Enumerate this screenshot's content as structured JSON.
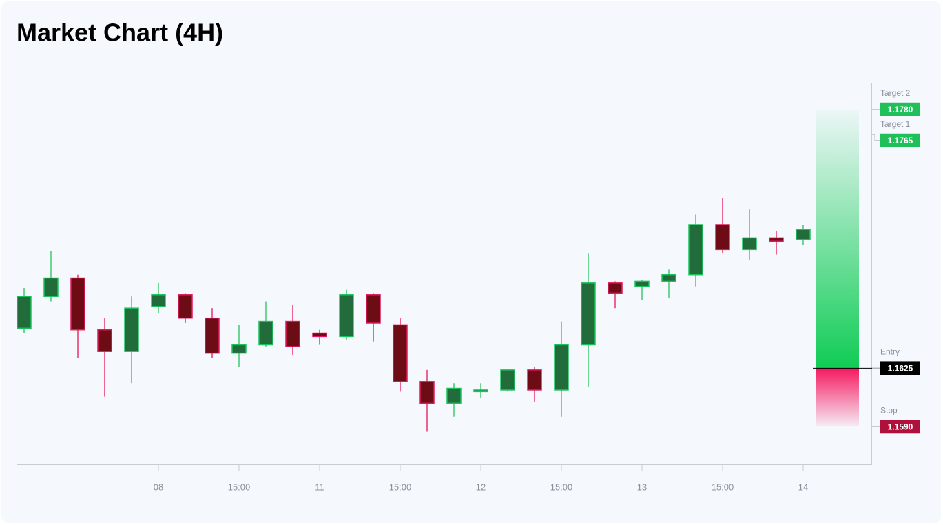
{
  "chart_data": {
    "type": "candlestick",
    "title": "Market Chart (4H)",
    "categories": [
      null,
      null,
      null,
      null,
      null,
      "08",
      null,
      null,
      "15:00",
      null,
      null,
      "11",
      null,
      null,
      "15:00",
      null,
      null,
      "12",
      null,
      null,
      "15:00",
      null,
      null,
      "13",
      null,
      null,
      "15:00",
      null,
      null,
      "14"
    ],
    "open": [
      1.1649,
      1.1668,
      1.1679,
      1.1648,
      1.1635,
      1.1662,
      1.1669,
      1.1655,
      1.1634,
      1.1639,
      1.1653,
      1.1646,
      1.1644,
      1.1669,
      1.1651,
      1.1617,
      1.1604,
      1.1611,
      1.1612,
      1.1624,
      1.1612,
      1.1639,
      1.1676,
      1.1674,
      1.1677,
      1.1681,
      1.1711,
      1.1696,
      1.1703,
      1.1702
    ],
    "high": [
      1.1673,
      1.1695,
      1.1681,
      1.1655,
      1.1668,
      1.1676,
      1.167,
      1.1661,
      1.1651,
      1.1665,
      1.1663,
      1.1648,
      1.1672,
      1.167,
      1.1655,
      1.1624,
      1.1616,
      1.1616,
      1.1624,
      1.1626,
      1.1653,
      1.1694,
      1.1677,
      1.1678,
      1.1684,
      1.1717,
      1.1727,
      1.172,
      1.1707,
      1.1711
    ],
    "low": [
      1.1646,
      1.1665,
      1.1631,
      1.1608,
      1.1616,
      1.1658,
      1.1652,
      1.1631,
      1.1626,
      1.1638,
      1.1633,
      1.1639,
      1.1642,
      1.1641,
      1.1611,
      1.1587,
      1.1596,
      1.1607,
      1.1611,
      1.1605,
      1.1596,
      1.1614,
      1.1661,
      1.1666,
      1.1667,
      1.1674,
      1.1694,
      1.169,
      1.1693,
      1.1699
    ],
    "close": [
      1.1668,
      1.1679,
      1.1648,
      1.1635,
      1.1661,
      1.1669,
      1.1655,
      1.1634,
      1.1639,
      1.1653,
      1.1638,
      1.1644,
      1.1669,
      1.1652,
      1.1617,
      1.1604,
      1.1613,
      1.1612,
      1.1624,
      1.1612,
      1.1639,
      1.1676,
      1.167,
      1.1677,
      1.1681,
      1.1711,
      1.1696,
      1.1703,
      1.1701,
      1.1708
    ],
    "up_color": "#226b3a",
    "down_color": "#6e0c16",
    "ylim": [
      1.1567,
      1.1796
    ],
    "levels": [
      {
        "name": "Target 2",
        "value": 1.178,
        "label": "1.1780",
        "color": "#1fbf5a"
      },
      {
        "name": "Target 1",
        "value": 1.1765,
        "color": "#1fbf5a"
      },
      {
        "name": "Entry",
        "value": 1.1625,
        "color": "#000000"
      },
      {
        "name": "Stop",
        "value": 1.159,
        "label": "1.1590",
        "color": "#b0103c"
      }
    ]
  }
}
